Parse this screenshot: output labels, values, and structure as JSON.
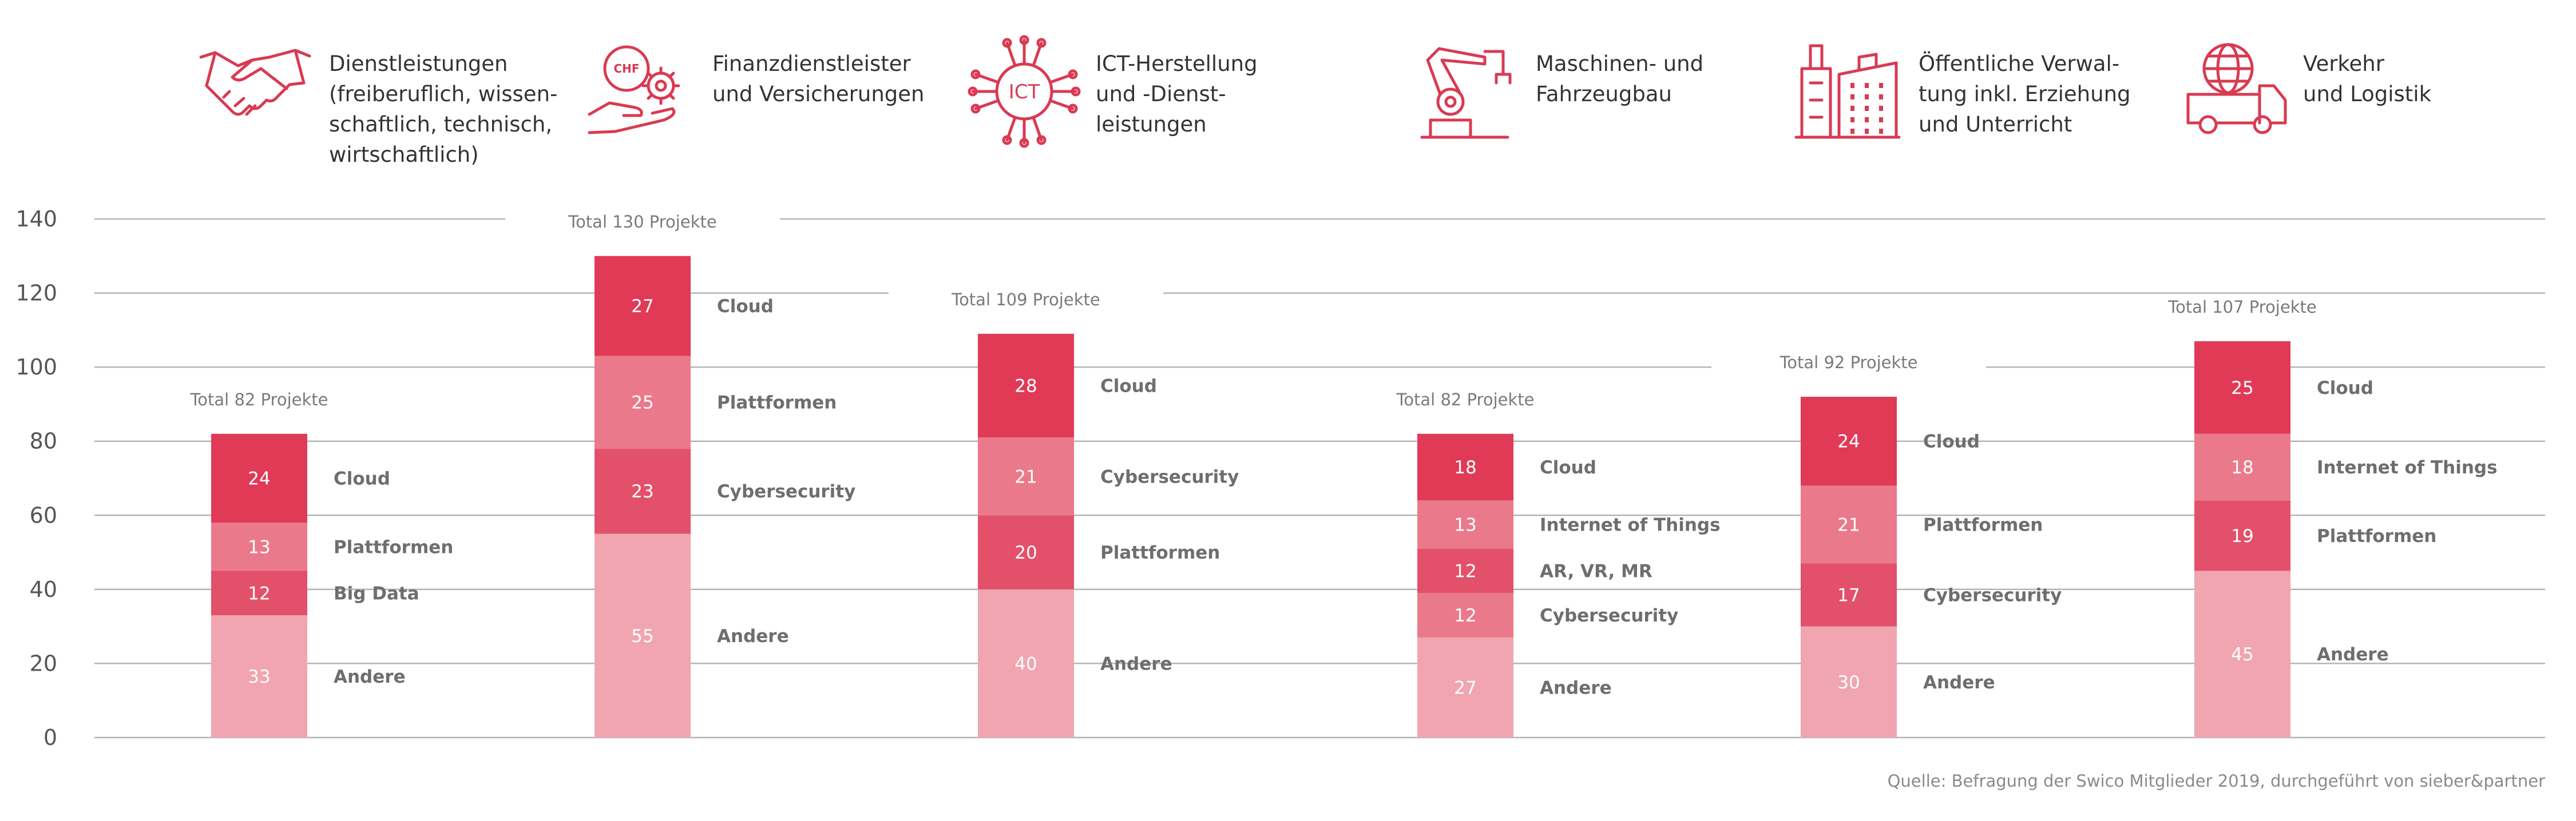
{
  "colors": {
    "cloud": "#e03a57",
    "layer2": "#ea7a8b",
    "layer3": "#e3506a",
    "andere": "#f0a5b1",
    "icon": "#d93a52"
  },
  "categories": [
    {
      "icon": "handshake-icon",
      "lines": [
        "Dienstleistungen",
        "(freiberuflich, wissen-",
        "schaftlich, technisch,",
        "wirtschaftlich)"
      ]
    },
    {
      "icon": "finance-icon",
      "icon_text": "CHF",
      "lines": [
        "Finanzdienstleister",
        "und Versicherungen"
      ]
    },
    {
      "icon": "ict-chip-icon",
      "icon_text": "ICT",
      "lines": [
        "ICT-Herstellung",
        "und -Dienst-",
        "leistungen"
      ]
    },
    {
      "icon": "robot-arm-icon",
      "lines": [
        "Maschinen- und",
        "Fahrzeugbau"
      ]
    },
    {
      "icon": "buildings-icon",
      "lines": [
        "Öffentliche Verwal-",
        "tung inkl. Erziehung",
        "und Unterricht"
      ]
    },
    {
      "icon": "truck-globe-icon",
      "lines": [
        "Verkehr",
        "und Logistik"
      ]
    }
  ],
  "chart_data": {
    "type": "bar",
    "stacked": true,
    "y_ticks": [
      0,
      20,
      40,
      60,
      80,
      100,
      120,
      140
    ],
    "ylim": [
      0,
      140
    ],
    "grid": true,
    "stacks": [
      {
        "total": 82,
        "total_label": "Total 82 Projekte",
        "segments": [
          {
            "label": "Andere",
            "value": 33,
            "color_key": "andere"
          },
          {
            "label": "Big Data",
            "value": 12,
            "color_key": "layer3"
          },
          {
            "label": "Plattformen",
            "value": 13,
            "color_key": "layer2"
          },
          {
            "label": "Cloud",
            "value": 24,
            "color_key": "cloud"
          }
        ]
      },
      {
        "total": 130,
        "total_label": "Total 130 Projekte",
        "segments": [
          {
            "label": "Andere",
            "value": 55,
            "color_key": "andere"
          },
          {
            "label": "Cybersecurity",
            "value": 23,
            "color_key": "layer3"
          },
          {
            "label": "Plattformen",
            "value": 25,
            "color_key": "layer2"
          },
          {
            "label": "Cloud",
            "value": 27,
            "color_key": "cloud"
          }
        ]
      },
      {
        "total": 109,
        "total_label": "Total 109 Projekte",
        "segments": [
          {
            "label": "Andere",
            "value": 40,
            "color_key": "andere"
          },
          {
            "label": "Plattformen",
            "value": 20,
            "color_key": "layer3"
          },
          {
            "label": "Cybersecurity",
            "value": 21,
            "color_key": "layer2"
          },
          {
            "label": "Cloud",
            "value": 28,
            "color_key": "cloud"
          }
        ]
      },
      {
        "total": 82,
        "total_label": "Total 82 Projekte",
        "segments": [
          {
            "label": "Andere",
            "value": 27,
            "color_key": "andere"
          },
          {
            "label": "Cybersecurity",
            "value": 12,
            "color_key": "layer2"
          },
          {
            "label": "AR, VR, MR",
            "value": 12,
            "color_key": "layer3"
          },
          {
            "label": "Internet of Things",
            "value": 13,
            "color_key": "layer2"
          },
          {
            "label": "Cloud",
            "value": 18,
            "color_key": "cloud"
          }
        ]
      },
      {
        "total": 92,
        "total_label": "Total 92 Projekte",
        "segments": [
          {
            "label": "Andere",
            "value": 30,
            "color_key": "andere"
          },
          {
            "label": "Cybersecurity",
            "value": 17,
            "color_key": "layer3"
          },
          {
            "label": "Plattformen",
            "value": 21,
            "color_key": "layer2"
          },
          {
            "label": "Cloud",
            "value": 24,
            "color_key": "cloud"
          }
        ]
      },
      {
        "total": 107,
        "total_label": "Total 107 Projekte",
        "segments": [
          {
            "label": "Andere",
            "value": 45,
            "color_key": "andere"
          },
          {
            "label": "Plattformen",
            "value": 19,
            "color_key": "layer3"
          },
          {
            "label": "Internet of Things",
            "value": 18,
            "color_key": "layer2"
          },
          {
            "label": "Cloud",
            "value": 25,
            "color_key": "cloud"
          }
        ]
      }
    ]
  },
  "source": "Quelle: Befragung der Swico Mitglieder 2019, durchgeführt von sieber&partner"
}
